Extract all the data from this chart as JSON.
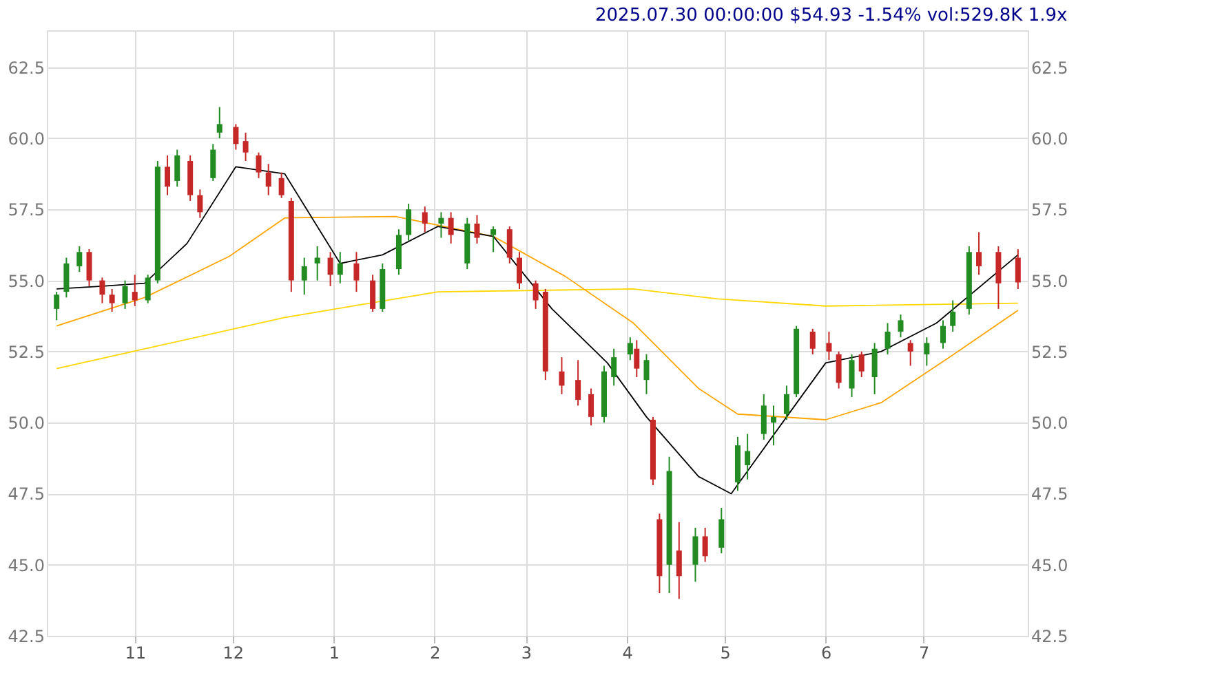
{
  "chart_data": {
    "type": "candlestick",
    "title": "2025.07.30 00:00:00 $54.93 -1.54% vol:529.8K 1.9x",
    "x": [
      "2024-10-08",
      "2024-10-11",
      "2024-10-15",
      "2024-10-18",
      "2024-10-22",
      "2024-10-25",
      "2024-10-29",
      "2024-11-01",
      "2024-11-05",
      "2024-11-08",
      "2024-11-11",
      "2024-11-14",
      "2024-11-18",
      "2024-11-21",
      "2024-11-25",
      "2024-11-27",
      "2024-12-02",
      "2024-12-05",
      "2024-12-09",
      "2024-12-12",
      "2024-12-16",
      "2024-12-19",
      "2024-12-23",
      "2024-12-27",
      "2024-12-31",
      "2025-01-03",
      "2025-01-08",
      "2025-01-13",
      "2025-01-16",
      "2025-01-21",
      "2025-01-24",
      "2025-01-29",
      "2025-02-03",
      "2025-02-06",
      "2025-02-11",
      "2025-02-14",
      "2025-02-19",
      "2025-02-24",
      "2025-02-27",
      "2025-03-04",
      "2025-03-07",
      "2025-03-12",
      "2025-03-17",
      "2025-03-21",
      "2025-03-25",
      "2025-03-28",
      "2025-04-02",
      "2025-04-04",
      "2025-04-07",
      "2025-04-09",
      "2025-04-11",
      "2025-04-14",
      "2025-04-17",
      "2025-04-22",
      "2025-04-25",
      "2025-04-30",
      "2025-05-05",
      "2025-05-08",
      "2025-05-13",
      "2025-05-16",
      "2025-05-20",
      "2025-05-23",
      "2025-05-28",
      "2025-06-02",
      "2025-06-05",
      "2025-06-09",
      "2025-06-12",
      "2025-06-16",
      "2025-06-20",
      "2025-06-24",
      "2025-06-27",
      "2025-07-02",
      "2025-07-07",
      "2025-07-10",
      "2025-07-15",
      "2025-07-18",
      "2025-07-24",
      "2025-07-30"
    ],
    "ohlc": [
      [
        54.0,
        54.6,
        53.6,
        54.5
      ],
      [
        54.6,
        55.8,
        54.4,
        55.6
      ],
      [
        55.5,
        56.2,
        55.3,
        56.0
      ],
      [
        56.0,
        56.1,
        54.8,
        55.0
      ],
      [
        55.0,
        55.1,
        54.2,
        54.5
      ],
      [
        54.5,
        54.7,
        53.9,
        54.2
      ],
      [
        54.2,
        55.0,
        54.0,
        54.8
      ],
      [
        54.6,
        55.2,
        54.1,
        54.3
      ],
      [
        54.3,
        55.2,
        54.2,
        55.1
      ],
      [
        55.0,
        59.2,
        54.9,
        59.0
      ],
      [
        59.0,
        59.4,
        58.0,
        58.3
      ],
      [
        58.5,
        59.6,
        58.3,
        59.4
      ],
      [
        59.2,
        59.4,
        57.8,
        58.0
      ],
      [
        58.0,
        58.2,
        57.2,
        57.4
      ],
      [
        58.6,
        59.8,
        58.5,
        59.6
      ],
      [
        60.2,
        61.1,
        60.0,
        60.5
      ],
      [
        60.4,
        60.5,
        59.6,
        59.8
      ],
      [
        59.9,
        60.2,
        59.2,
        59.5
      ],
      [
        59.4,
        59.5,
        58.6,
        58.8
      ],
      [
        58.8,
        59.1,
        58.0,
        58.3
      ],
      [
        58.6,
        58.8,
        57.9,
        58.0
      ],
      [
        57.8,
        57.9,
        54.6,
        55.0
      ],
      [
        55.0,
        55.8,
        54.5,
        55.5
      ],
      [
        55.6,
        56.2,
        55.0,
        55.8
      ],
      [
        55.8,
        56.0,
        54.8,
        55.2
      ],
      [
        55.2,
        56.0,
        54.9,
        55.6
      ],
      [
        55.6,
        56.0,
        54.6,
        55.0
      ],
      [
        55.0,
        55.2,
        53.9,
        54.0
      ],
      [
        54.0,
        55.6,
        53.9,
        55.4
      ],
      [
        55.4,
        56.8,
        55.2,
        56.6
      ],
      [
        56.6,
        57.7,
        56.4,
        57.5
      ],
      [
        57.4,
        57.6,
        56.7,
        57.0
      ],
      [
        57.0,
        57.4,
        56.5,
        57.2
      ],
      [
        57.2,
        57.4,
        56.3,
        56.6
      ],
      [
        55.6,
        57.2,
        55.4,
        57.0
      ],
      [
        57.0,
        57.3,
        56.3,
        56.5
      ],
      [
        56.6,
        56.9,
        56.0,
        56.8
      ],
      [
        56.8,
        56.9,
        55.6,
        55.8
      ],
      [
        55.8,
        56.0,
        54.7,
        54.9
      ],
      [
        54.9,
        55.0,
        54.0,
        54.3
      ],
      [
        54.6,
        54.7,
        51.5,
        51.8
      ],
      [
        51.8,
        52.3,
        51.0,
        51.3
      ],
      [
        51.5,
        52.2,
        50.6,
        50.8
      ],
      [
        51.0,
        51.2,
        49.9,
        50.2
      ],
      [
        50.2,
        52.0,
        50.0,
        51.8
      ],
      [
        51.6,
        52.6,
        51.3,
        52.3
      ],
      [
        52.4,
        53.0,
        52.2,
        52.8
      ],
      [
        52.6,
        52.9,
        51.6,
        51.9
      ],
      [
        51.5,
        52.4,
        51.0,
        52.2
      ],
      [
        50.1,
        50.2,
        47.8,
        48.0
      ],
      [
        46.6,
        46.8,
        44.0,
        44.6
      ],
      [
        45.0,
        48.8,
        44.0,
        48.3
      ],
      [
        45.5,
        46.5,
        43.8,
        44.6
      ],
      [
        45.0,
        46.3,
        44.4,
        46.0
      ],
      [
        46.0,
        46.3,
        45.1,
        45.3
      ],
      [
        45.6,
        47.0,
        45.4,
        46.6
      ],
      [
        47.9,
        49.5,
        47.6,
        49.2
      ],
      [
        48.5,
        49.6,
        48.0,
        49.0
      ],
      [
        49.6,
        51.0,
        49.4,
        50.6
      ],
      [
        50.0,
        50.6,
        49.2,
        50.2
      ],
      [
        50.3,
        51.3,
        50.1,
        51.0
      ],
      [
        51.0,
        53.4,
        50.9,
        53.3
      ],
      [
        53.2,
        53.3,
        52.4,
        52.6
      ],
      [
        52.8,
        53.2,
        52.2,
        52.5
      ],
      [
        52.4,
        52.5,
        51.2,
        51.4
      ],
      [
        51.2,
        52.4,
        50.9,
        52.2
      ],
      [
        52.4,
        52.5,
        51.6,
        51.8
      ],
      [
        51.6,
        52.8,
        51.0,
        52.6
      ],
      [
        52.6,
        53.5,
        52.4,
        53.2
      ],
      [
        53.2,
        53.8,
        53.0,
        53.6
      ],
      [
        52.8,
        52.9,
        52.0,
        52.5
      ],
      [
        52.4,
        53.0,
        52.0,
        52.8
      ],
      [
        52.8,
        53.6,
        52.6,
        53.4
      ],
      [
        53.4,
        54.3,
        53.2,
        53.9
      ],
      [
        54.0,
        56.2,
        53.8,
        56.0
      ],
      [
        56.0,
        56.7,
        55.2,
        55.5
      ],
      [
        56.0,
        56.2,
        54.0,
        54.9
      ],
      [
        55.8,
        56.1,
        54.7,
        54.93
      ]
    ],
    "series": [
      {
        "type": "line",
        "color": "#ffd700",
        "x": [
          "2024-10-08",
          "2024-12-17",
          "2025-02-02",
          "2025-04-03",
          "2025-04-29",
          "2025-06-01",
          "2025-07-30"
        ],
        "values": [
          51.9,
          53.7,
          54.6,
          54.7,
          54.35,
          54.1,
          54.2
        ]
      },
      {
        "type": "line",
        "color": "#ffa500",
        "x": [
          "2024-10-08",
          "2024-11-04",
          "2024-11-30",
          "2024-12-17",
          "2025-01-20",
          "2025-02-19",
          "2025-03-13",
          "2025-04-03",
          "2025-04-23",
          "2025-05-05",
          "2025-06-01",
          "2025-06-18",
          "2025-07-09",
          "2025-07-30"
        ],
        "values": [
          53.4,
          54.4,
          55.85,
          57.2,
          57.25,
          56.55,
          55.15,
          53.5,
          51.2,
          50.3,
          50.1,
          50.7,
          52.3,
          53.95
        ]
      },
      {
        "type": "line",
        "color": "#000000",
        "x": [
          "2024-10-08",
          "2024-10-22",
          "2024-11-04",
          "2024-11-17",
          "2024-12-02",
          "2024-12-17",
          "2025-01-03",
          "2025-01-16",
          "2025-02-02",
          "2025-02-19",
          "2025-03-09",
          "2025-03-26",
          "2025-04-07",
          "2025-04-23",
          "2025-05-03",
          "2025-05-20",
          "2025-06-01",
          "2025-06-18",
          "2025-07-05",
          "2025-07-30"
        ],
        "values": [
          54.7,
          54.8,
          54.9,
          56.3,
          59.0,
          58.75,
          55.6,
          55.9,
          56.9,
          56.55,
          54.0,
          52.1,
          50.2,
          48.1,
          47.5,
          50.2,
          52.1,
          52.5,
          53.5,
          55.9
        ]
      }
    ],
    "xlim": [
      "2024-10-05",
      "2025-08-02"
    ],
    "xticks": [
      {
        "value": "2024-11-01",
        "label": "11"
      },
      {
        "value": "2024-12-01",
        "label": "12"
      },
      {
        "value": "2025-01-01",
        "label": "1"
      },
      {
        "value": "2025-02-01",
        "label": "2"
      },
      {
        "value": "2025-03-01",
        "label": "3"
      },
      {
        "value": "2025-04-01",
        "label": "4"
      },
      {
        "value": "2025-05-01",
        "label": "5"
      },
      {
        "value": "2025-06-01",
        "label": "6"
      },
      {
        "value": "2025-07-01",
        "label": "7"
      }
    ],
    "ylim": [
      42.5,
      63.8
    ],
    "yticks": [
      {
        "value": 42.5,
        "label": "42.5"
      },
      {
        "value": 45,
        "label": "45.0"
      },
      {
        "value": 47.5,
        "label": "47.5"
      },
      {
        "value": 50,
        "label": "50.0"
      },
      {
        "value": 52.5,
        "label": "52.5"
      },
      {
        "value": 55,
        "label": "55.0"
      },
      {
        "value": 57.5,
        "label": "57.5"
      },
      {
        "value": 60,
        "label": "60.0"
      },
      {
        "value": 62.5,
        "label": "62.5"
      }
    ],
    "y2lim": [
      42.5,
      63.8
    ],
    "y2ticks": [
      {
        "value": 42.5,
        "label": "42.5"
      },
      {
        "value": 45,
        "label": "45.0"
      },
      {
        "value": 47.5,
        "label": "47.5"
      },
      {
        "value": 50,
        "label": "50.0"
      },
      {
        "value": 52.5,
        "label": "52.5"
      },
      {
        "value": 55,
        "label": "55.0"
      },
      {
        "value": 57.5,
        "label": "57.5"
      },
      {
        "value": 60,
        "label": "60.0"
      },
      {
        "value": 62.5,
        "label": "62.5"
      }
    ],
    "colors": [
      "#228b22",
      "#228b22",
      "#228b22",
      "#c62828",
      "#c62828",
      "#c62828",
      "#228b22",
      "#c62828",
      "#228b22",
      "#228b22",
      "#c62828",
      "#228b22",
      "#c62828",
      "#c62828",
      "#228b22",
      "#228b22",
      "#c62828",
      "#c62828",
      "#c62828",
      "#c62828",
      "#c62828",
      "#c62828",
      "#228b22",
      "#228b22",
      "#c62828",
      "#228b22",
      "#c62828",
      "#c62828",
      "#228b22",
      "#228b22",
      "#228b22",
      "#c62828",
      "#228b22",
      "#c62828",
      "#228b22",
      "#c62828",
      "#228b22",
      "#c62828",
      "#c62828",
      "#c62828",
      "#c62828",
      "#c62828",
      "#c62828",
      "#c62828",
      "#228b22",
      "#228b22",
      "#228b22",
      "#c62828",
      "#228b22",
      "#c62828",
      "#c62828",
      "#228b22",
      "#c62828",
      "#228b22",
      "#c62828",
      "#228b22",
      "#228b22",
      "#228b22",
      "#228b22",
      "#228b22",
      "#228b22",
      "#228b22",
      "#c62828",
      "#c62828",
      "#c62828",
      "#228b22",
      "#c62828",
      "#228b22",
      "#228b22",
      "#228b22",
      "#c62828",
      "#228b22",
      "#228b22",
      "#228b22",
      "#228b22",
      "#c62828",
      "#c62828",
      "#c62828"
    ],
    "grid": true
  }
}
